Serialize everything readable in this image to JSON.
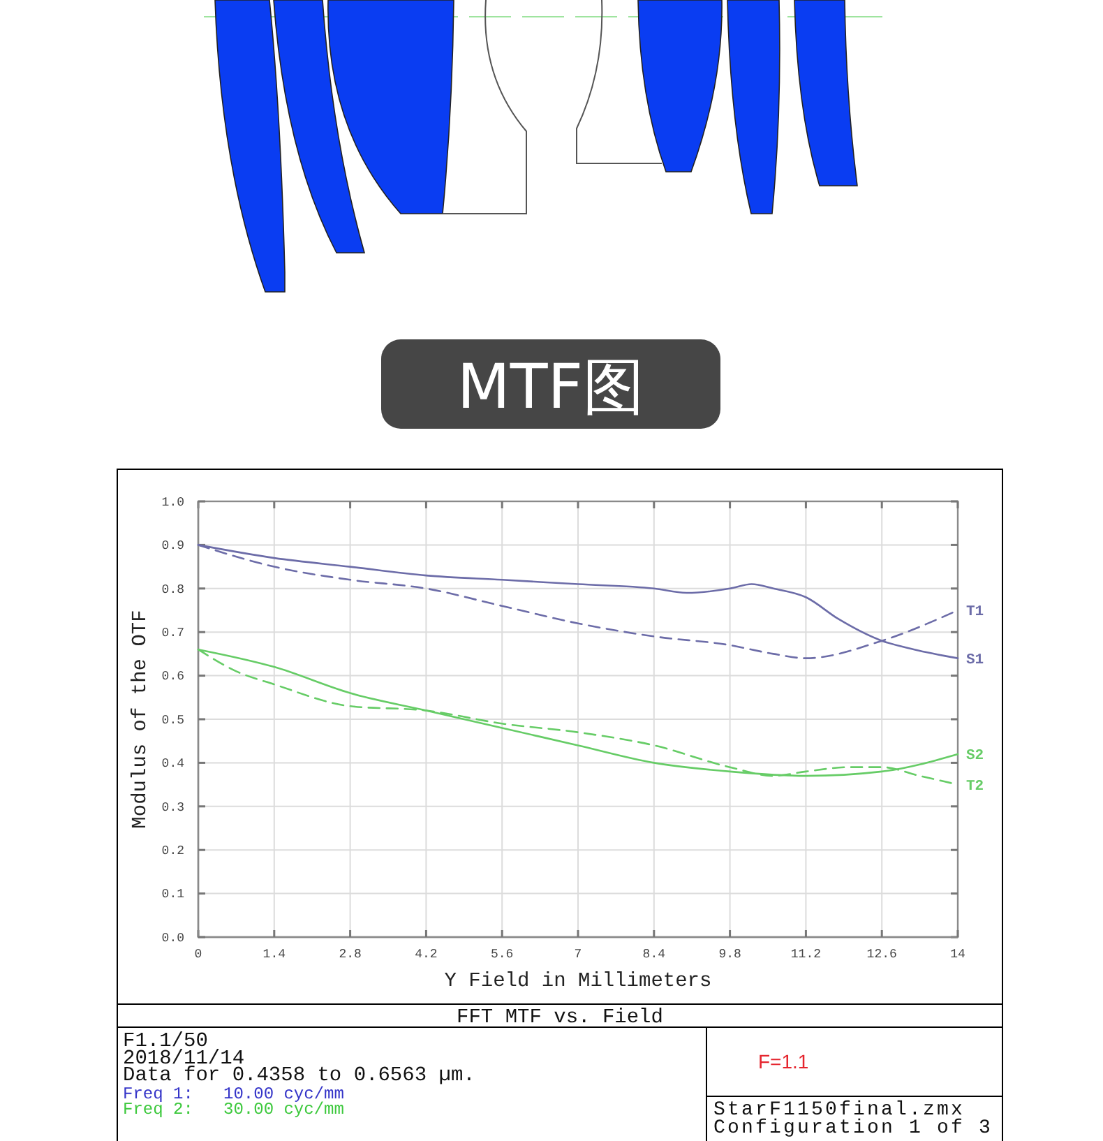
{
  "chart_data": {
    "type": "line",
    "title": "MTF图",
    "subtitle": "FFT MTF vs. Field",
    "xlabel": "Y Field in Millimeters",
    "ylabel": "Modulus of the OTF",
    "xlim": [
      0,
      14
    ],
    "xticks": [
      0,
      1.4,
      2.8,
      4.2,
      5.6,
      7,
      8.4,
      9.8,
      11.2,
      12.6,
      14
    ],
    "ylim": [
      0,
      1
    ],
    "yticks": [
      {
        "value": 0,
        "label": "0.0"
      },
      0.1,
      0.2,
      0.3,
      0.4,
      0.5,
      0.6,
      0.7,
      0.8,
      0.9,
      {
        "value": 1,
        "label": "1.0"
      }
    ],
    "grid": true,
    "series": [
      {
        "name": "T1",
        "color": "#6c6ca8",
        "line_style": "dashed",
        "x": [
          0,
          1.4,
          2.8,
          4.2,
          5.6,
          7,
          8.4,
          9.8,
          10.6,
          11.2,
          12.6,
          14
        ],
        "values": [
          0.9,
          0.85,
          0.82,
          0.8,
          0.76,
          0.72,
          0.69,
          0.67,
          0.65,
          0.64,
          0.68,
          0.75
        ]
      },
      {
        "name": "S1",
        "color": "#6c6ca8",
        "line_style": "solid",
        "x": [
          0,
          1.4,
          2.8,
          4.2,
          5.6,
          7,
          8.4,
          9,
          9.8,
          10.2,
          10.6,
          11.2,
          11.8,
          12.6,
          13.2,
          14
        ],
        "values": [
          0.9,
          0.87,
          0.85,
          0.83,
          0.82,
          0.81,
          0.8,
          0.79,
          0.8,
          0.81,
          0.8,
          0.78,
          0.73,
          0.68,
          0.66,
          0.64
        ]
      },
      {
        "name": "S2",
        "color": "#66cc66",
        "line_style": "solid",
        "x": [
          0,
          1.4,
          2.8,
          4.2,
          5.6,
          7,
          8.4,
          9.8,
          11.2,
          12.6,
          14
        ],
        "values": [
          0.66,
          0.62,
          0.56,
          0.52,
          0.48,
          0.44,
          0.4,
          0.38,
          0.37,
          0.38,
          0.42
        ]
      },
      {
        "name": "T2",
        "color": "#66cc66",
        "line_style": "dashed",
        "x": [
          0,
          0.7,
          1.4,
          2.8,
          4.2,
          5.6,
          7,
          8.4,
          9.8,
          10.6,
          11.2,
          12,
          12.6,
          13.3,
          14
        ],
        "values": [
          0.66,
          0.61,
          0.58,
          0.53,
          0.52,
          0.49,
          0.47,
          0.44,
          0.39,
          0.37,
          0.38,
          0.39,
          0.39,
          0.37,
          0.35
        ]
      }
    ],
    "annotations": [
      "F1.1/50",
      "2018/11/14",
      "Data for 0.4358 to 0.6563 µm.",
      "Freq 1:   10.00 cyc/mm",
      "Freq 2:   30.00 cyc/mm",
      "F=1.1",
      "StarF1150final.zmx",
      "Configuration 1 of 3"
    ]
  }
}
